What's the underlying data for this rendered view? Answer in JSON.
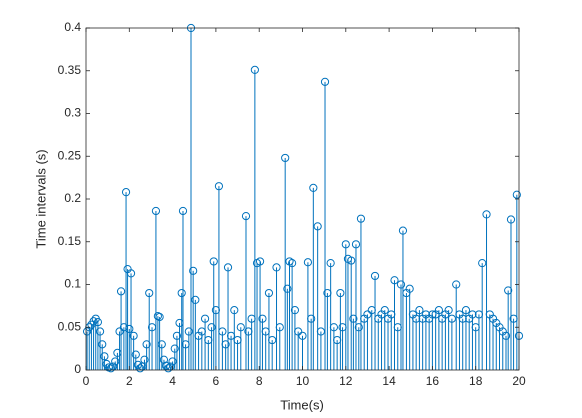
{
  "chart_data": {
    "type": "stem",
    "xlabel": "Time(s)",
    "ylabel": "Time intervals (s)",
    "color": "#0072bd",
    "xlim": [
      0,
      20
    ],
    "xticks": [
      0,
      2,
      4,
      6,
      8,
      10,
      12,
      14,
      16,
      18,
      20
    ],
    "ylim": [
      0,
      0.4
    ],
    "yticks": [
      0,
      0.05,
      0.1,
      0.15,
      0.2,
      0.25,
      0.3,
      0.35,
      0.4
    ],
    "x": [
      0.05,
      0.15,
      0.25,
      0.35,
      0.45,
      0.55,
      0.65,
      0.75,
      0.85,
      0.95,
      1.05,
      1.15,
      1.25,
      1.35,
      1.45,
      1.55,
      1.62,
      1.75,
      1.85,
      1.92,
      2.0,
      2.08,
      2.2,
      2.3,
      2.4,
      2.5,
      2.6,
      2.7,
      2.8,
      2.92,
      3.05,
      3.23,
      3.32,
      3.4,
      3.5,
      3.6,
      3.7,
      3.8,
      3.9,
      4.0,
      4.1,
      4.2,
      4.32,
      4.42,
      4.48,
      4.6,
      4.75,
      4.85,
      4.95,
      5.05,
      5.2,
      5.35,
      5.5,
      5.65,
      5.8,
      5.9,
      6.0,
      6.14,
      6.3,
      6.45,
      6.56,
      6.7,
      6.85,
      7.0,
      7.15,
      7.39,
      7.5,
      7.65,
      7.8,
      7.9,
      8.04,
      8.15,
      8.3,
      8.45,
      8.6,
      8.8,
      8.95,
      9.2,
      9.3,
      9.4,
      9.52,
      9.65,
      9.8,
      10.0,
      10.25,
      10.4,
      10.5,
      10.7,
      10.85,
      11.04,
      11.15,
      11.3,
      11.45,
      11.6,
      11.75,
      11.85,
      12.0,
      12.1,
      12.25,
      12.35,
      12.47,
      12.6,
      12.7,
      12.85,
      13.0,
      13.2,
      13.35,
      13.5,
      13.65,
      13.8,
      13.95,
      14.1,
      14.25,
      14.4,
      14.55,
      14.64,
      14.8,
      14.95,
      15.1,
      15.25,
      15.4,
      15.55,
      15.7,
      15.85,
      16.0,
      16.15,
      16.3,
      16.45,
      16.6,
      16.75,
      16.9,
      17.1,
      17.25,
      17.4,
      17.55,
      17.7,
      17.85,
      18.0,
      18.15,
      18.3,
      18.5,
      18.65,
      18.8,
      18.95,
      19.1,
      19.25,
      19.4,
      19.5,
      19.63,
      19.75,
      19.9,
      20.0
    ],
    "values": [
      0.045,
      0.05,
      0.053,
      0.057,
      0.06,
      0.056,
      0.045,
      0.03,
      0.016,
      0.007,
      0.003,
      0.002,
      0.004,
      0.01,
      0.02,
      0.045,
      0.092,
      0.05,
      0.208,
      0.118,
      0.048,
      0.113,
      0.04,
      0.018,
      0.006,
      0.002,
      0.004,
      0.012,
      0.03,
      0.09,
      0.05,
      0.186,
      0.063,
      0.062,
      0.03,
      0.012,
      0.005,
      0.002,
      0.004,
      0.01,
      0.025,
      0.04,
      0.055,
      0.09,
      0.186,
      0.03,
      0.045,
      0.4,
      0.116,
      0.082,
      0.04,
      0.045,
      0.06,
      0.035,
      0.05,
      0.127,
      0.07,
      0.215,
      0.045,
      0.03,
      0.12,
      0.04,
      0.07,
      0.035,
      0.05,
      0.18,
      0.045,
      0.06,
      0.351,
      0.125,
      0.127,
      0.06,
      0.045,
      0.09,
      0.035,
      0.12,
      0.05,
      0.248,
      0.095,
      0.127,
      0.125,
      0.07,
      0.045,
      0.04,
      0.126,
      0.06,
      0.213,
      0.168,
      0.045,
      0.337,
      0.09,
      0.125,
      0.05,
      0.035,
      0.09,
      0.05,
      0.147,
      0.13,
      0.128,
      0.06,
      0.147,
      0.05,
      0.177,
      0.06,
      0.065,
      0.07,
      0.11,
      0.06,
      0.065,
      0.07,
      0.06,
      0.065,
      0.105,
      0.05,
      0.1,
      0.163,
      0.09,
      0.095,
      0.065,
      0.06,
      0.07,
      0.06,
      0.065,
      0.06,
      0.065,
      0.065,
      0.07,
      0.06,
      0.065,
      0.07,
      0.06,
      0.1,
      0.065,
      0.06,
      0.07,
      0.06,
      0.065,
      0.05,
      0.065,
      0.125,
      0.182,
      0.065,
      0.06,
      0.055,
      0.05,
      0.045,
      0.04,
      0.093,
      0.176,
      0.06,
      0.205,
      0.04
    ]
  }
}
